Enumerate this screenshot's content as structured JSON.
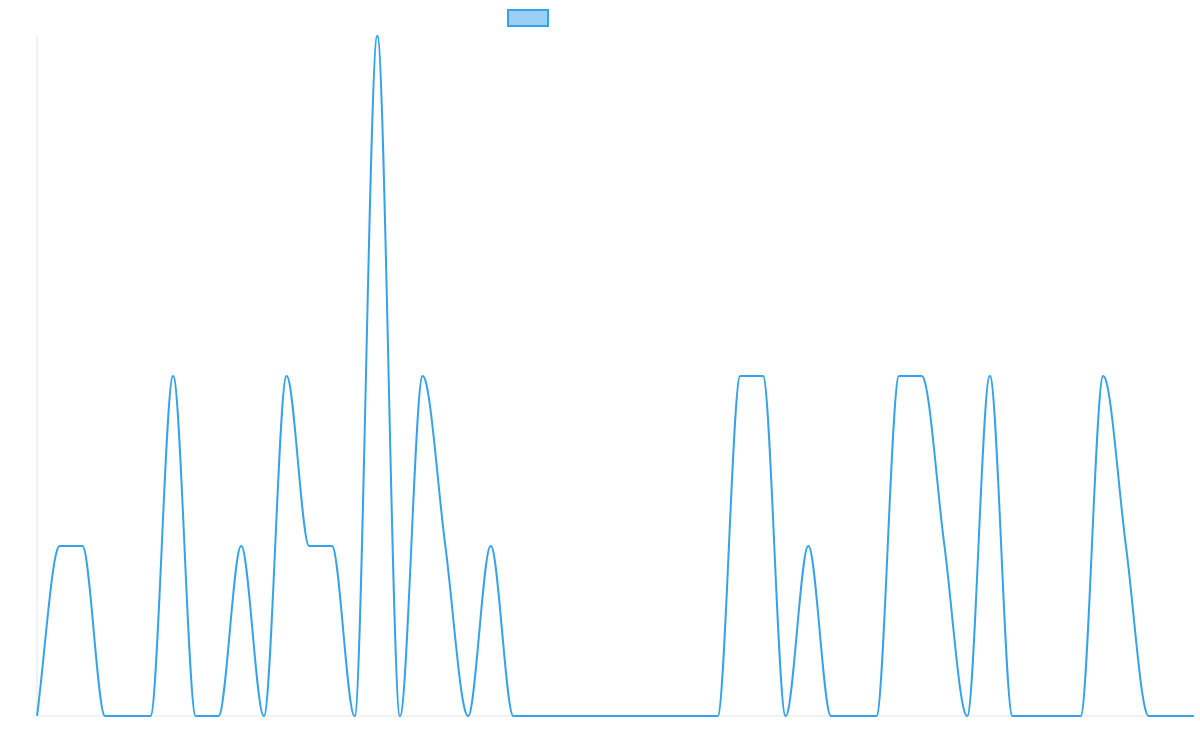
{
  "colors": {
    "line": "#36a2eb",
    "legend_fill": "#9ad0f5",
    "axis": "#e5e5e5",
    "background": "#ffffff"
  },
  "legend": {
    "label": "",
    "placement": "top-center"
  },
  "chart_data": {
    "type": "line",
    "title": "",
    "xlabel": "",
    "ylabel": "",
    "grid": false,
    "ticks_shown": false,
    "ylim": [
      0,
      4
    ],
    "x": [
      0,
      1,
      2,
      3,
      4,
      5,
      6,
      7,
      8,
      9,
      10,
      11,
      12,
      13,
      14,
      15,
      16,
      17,
      18,
      19,
      20,
      21,
      22,
      23,
      24,
      25,
      26,
      27,
      28,
      29,
      30,
      31,
      32,
      33,
      34,
      35,
      36,
      37,
      38,
      39,
      40,
      41,
      42,
      43,
      44,
      45,
      46,
      47,
      48,
      49,
      50,
      51
    ],
    "series": [
      {
        "name": "",
        "values": [
          0,
          1,
          1,
          0,
          0,
          0,
          2,
          0,
          0,
          1,
          0,
          2,
          1,
          1,
          0,
          4,
          0,
          2,
          1,
          0,
          1,
          0,
          0,
          0,
          0,
          0,
          0,
          0,
          0,
          0,
          0,
          2,
          2,
          0,
          1,
          0,
          0,
          0,
          2,
          2,
          1,
          0,
          2,
          0,
          0,
          0,
          0,
          2,
          1,
          0,
          0,
          0
        ]
      }
    ]
  }
}
